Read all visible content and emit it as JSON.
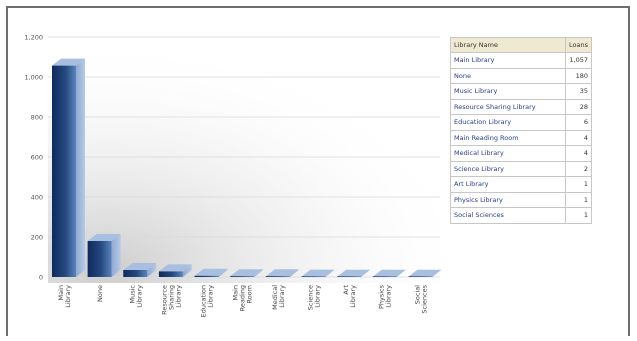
{
  "chart_data": {
    "type": "bar",
    "title": "",
    "xlabel": "",
    "ylabel": "",
    "ylim": [
      0,
      1200
    ],
    "yticks": [
      "0",
      "200",
      "400",
      "600",
      "800",
      "1,000",
      "1,200"
    ],
    "categories": [
      "Main Library",
      "None",
      "Music Library",
      "Resource Sharing Library",
      "Education Library",
      "Main Reading Room",
      "Medical Library",
      "Science Library",
      "Art Library",
      "Physics Library",
      "Social Sciences"
    ],
    "values": [
      1057,
      180,
      35,
      28,
      6,
      4,
      4,
      2,
      1,
      1,
      1
    ],
    "grid": true,
    "legend_position": "right",
    "colors": {
      "bar_dark": "#0f2a5c",
      "bar_mid": "#3f6aa8",
      "bar_light": "#a9bfe0",
      "grid": "#d8d8d8"
    }
  },
  "data_table": {
    "headers": {
      "name": "Library Name",
      "value": "Loans"
    },
    "rows": [
      {
        "name": "Main Library",
        "value": "1,057"
      },
      {
        "name": "None",
        "value": "180"
      },
      {
        "name": "Music Library",
        "value": "35"
      },
      {
        "name": "Resource Sharing Library",
        "value": "28"
      },
      {
        "name": "Education Library",
        "value": "6"
      },
      {
        "name": "Main Reading Room",
        "value": "4"
      },
      {
        "name": "Medical Library",
        "value": "4"
      },
      {
        "name": "Science Library",
        "value": "2"
      },
      {
        "name": "Art Library",
        "value": "1"
      },
      {
        "name": "Physics Library",
        "value": "1"
      },
      {
        "name": "Social Sciences",
        "value": "1"
      }
    ]
  }
}
